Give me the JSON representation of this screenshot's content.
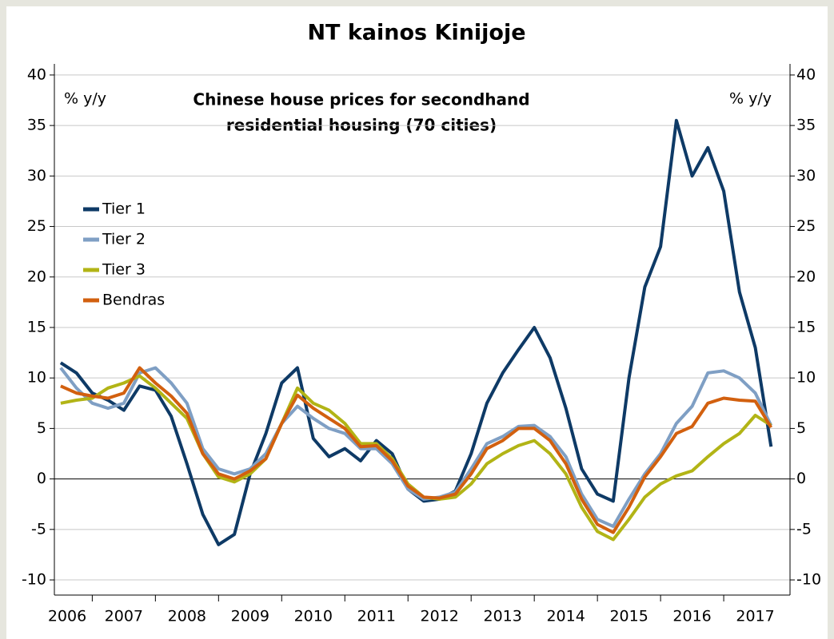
{
  "chart_data": {
    "type": "line",
    "title": "NT kainos Kinijoje",
    "subtitle": [
      "Chinese house prices for secondhand",
      "residential housing (70 cities)"
    ],
    "y_label": "% y/y",
    "y2_label": "% y/y",
    "x": [
      2006.5,
      2006.75,
      2007,
      2007.25,
      2007.5,
      2007.75,
      2008,
      2008.25,
      2008.5,
      2008.75,
      2009,
      2009.25,
      2009.5,
      2009.75,
      2010,
      2010.25,
      2010.5,
      2010.75,
      2011,
      2011.25,
      2011.5,
      2011.75,
      2012,
      2012.25,
      2012.5,
      2012.75,
      2013,
      2013.25,
      2013.5,
      2013.75,
      2014,
      2014.25,
      2014.5,
      2014.75,
      2015,
      2015.25,
      2015.5,
      2015.75,
      2016,
      2016.25,
      2016.5,
      2016.75,
      2017,
      2017.25,
      2017.5,
      2017.75
    ],
    "xlim": [
      2006.4,
      2018.05
    ],
    "xticks": [
      2006,
      2007,
      2008,
      2009,
      2010,
      2011,
      2012,
      2013,
      2014,
      2015,
      2016,
      2017
    ],
    "ylim": [
      -11.5,
      41.1
    ],
    "yticks": [
      -10,
      -5,
      0,
      5,
      10,
      15,
      20,
      25,
      30,
      35,
      40
    ],
    "y2lim": [
      -11.5,
      41.1
    ],
    "y2ticks": [
      -10,
      -5,
      0,
      5,
      10,
      15,
      20,
      25,
      30,
      35,
      40
    ],
    "grid": true,
    "legend": "upper left",
    "series": [
      {
        "name": "Tier 1",
        "color": "#0e3a66",
        "values": [
          11.5,
          10.5,
          8.5,
          7.8,
          6.8,
          9.2,
          8.8,
          6.2,
          1.5,
          -3.5,
          -6.5,
          -5.5,
          0.5,
          4.5,
          9.5,
          11,
          4,
          2.2,
          3,
          1.8,
          3.8,
          2.5,
          -1,
          -2.2,
          -2,
          -1.2,
          2.5,
          7.5,
          10.5,
          12.8,
          15,
          12,
          7,
          1,
          -1.5,
          -2.2,
          10,
          19,
          23,
          35.5,
          30,
          32.8,
          28.5,
          18.5,
          13,
          3.2
        ]
      },
      {
        "name": "Tier 2",
        "color": "#7f9fc4",
        "values": [
          11,
          9,
          7.5,
          7,
          7.5,
          10.5,
          11,
          9.5,
          7.5,
          3,
          1,
          0.5,
          1,
          2.5,
          5.5,
          7.2,
          6,
          5,
          4.5,
          3,
          3,
          1.5,
          -1,
          -2,
          -1.8,
          -1.3,
          1,
          3.5,
          4.2,
          5.2,
          5.3,
          4.2,
          2.2,
          -1.5,
          -4,
          -4.7,
          -2,
          0.5,
          2.5,
          5.5,
          7.2,
          10.5,
          10.7,
          10,
          8.5,
          5.3
        ]
      },
      {
        "name": "Tier 3",
        "color": "#b2b416",
        "values": [
          7.5,
          7.8,
          8,
          9,
          9.5,
          10.2,
          9,
          7.5,
          6,
          2.5,
          0.2,
          -0.3,
          0.5,
          2,
          5.5,
          9,
          7.5,
          6.8,
          5.5,
          3.5,
          3.5,
          2,
          -0.5,
          -1.8,
          -2,
          -1.8,
          -0.5,
          1.5,
          2.5,
          3.3,
          3.8,
          2.5,
          0.5,
          -2.8,
          -5.2,
          -6,
          -4,
          -1.8,
          -0.5,
          0.3,
          0.8,
          2.2,
          3.5,
          4.5,
          6.3,
          5.3
        ]
      },
      {
        "name": "Bendras",
        "color": "#d2600f",
        "values": [
          9.2,
          8.5,
          8.2,
          8,
          8.5,
          11,
          9.5,
          8.2,
          6.5,
          2.5,
          0.5,
          0,
          0.8,
          2,
          5.5,
          8.3,
          7,
          6,
          5,
          3.2,
          3.3,
          1.8,
          -0.7,
          -1.8,
          -1.9,
          -1.5,
          0.5,
          3,
          3.8,
          5,
          5,
          3.8,
          1.5,
          -2,
          -4.5,
          -5.3,
          -2.8,
          0.2,
          2.2,
          4.5,
          5.2,
          7.5,
          8,
          7.8,
          7.7,
          5.1
        ]
      }
    ]
  }
}
